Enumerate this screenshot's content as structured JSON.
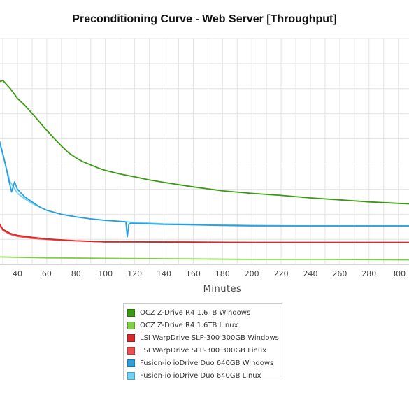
{
  "chart_data": {
    "type": "line",
    "title": "Preconditioning Curve - Web Server [Throughput]",
    "xlabel": "Minutes",
    "ylabel": "",
    "x_ticks": [
      40,
      60,
      80,
      100,
      120,
      140,
      160,
      180,
      200,
      220,
      240,
      260,
      280,
      300
    ],
    "xlim": [
      27,
      308
    ],
    "grid": true,
    "legend_position": "bottom",
    "series": [
      {
        "name": "OCZ Z-Drive R4 1.6TB Windows",
        "color": "#3a9a12",
        "points": [
          [
            27,
            0.855
          ],
          [
            30,
            0.858
          ],
          [
            35,
            0.842
          ],
          [
            40,
            0.822
          ],
          [
            45,
            0.808
          ],
          [
            50,
            0.792
          ],
          [
            55,
            0.775
          ],
          [
            60,
            0.758
          ],
          [
            65,
            0.742
          ],
          [
            70,
            0.727
          ],
          [
            75,
            0.713
          ],
          [
            80,
            0.703
          ],
          [
            85,
            0.695
          ],
          [
            90,
            0.689
          ],
          [
            95,
            0.683
          ],
          [
            100,
            0.678
          ],
          [
            110,
            0.671
          ],
          [
            120,
            0.665
          ],
          [
            130,
            0.659
          ],
          [
            140,
            0.654
          ],
          [
            160,
            0.645
          ],
          [
            180,
            0.637
          ],
          [
            200,
            0.632
          ],
          [
            220,
            0.628
          ],
          [
            240,
            0.623
          ],
          [
            260,
            0.619
          ],
          [
            280,
            0.615
          ],
          [
            300,
            0.612
          ],
          [
            308,
            0.611
          ]
        ]
      },
      {
        "name": "OCZ Z-Drive R4 1.6TB Linux",
        "color": "#7ed242",
        "points": [
          [
            27,
            0.505
          ],
          [
            60,
            0.503
          ],
          [
            100,
            0.502
          ],
          [
            150,
            0.501
          ],
          [
            200,
            0.5
          ],
          [
            250,
            0.5
          ],
          [
            308,
            0.499
          ]
        ]
      },
      {
        "name": "LSI WarpDrive SLP-300 300GB Windows",
        "color": "#d42c2c",
        "points": [
          [
            27,
            0.575
          ],
          [
            30,
            0.56
          ],
          [
            35,
            0.552
          ],
          [
            40,
            0.548
          ],
          [
            50,
            0.544
          ],
          [
            60,
            0.541
          ],
          [
            70,
            0.539
          ],
          [
            80,
            0.537
          ],
          [
            90,
            0.536
          ],
          [
            100,
            0.535
          ],
          [
            120,
            0.535
          ],
          [
            160,
            0.534
          ],
          [
            200,
            0.534
          ],
          [
            250,
            0.534
          ],
          [
            308,
            0.534
          ]
        ]
      },
      {
        "name": "LSI WarpDrive SLP-300 300GB Linux",
        "color": "#ee5050",
        "points": [
          [
            27,
            0.572
          ],
          [
            30,
            0.558
          ],
          [
            35,
            0.55
          ],
          [
            40,
            0.546
          ],
          [
            50,
            0.542
          ],
          [
            60,
            0.54
          ],
          [
            70,
            0.538
          ],
          [
            80,
            0.537
          ],
          [
            90,
            0.536
          ],
          [
            100,
            0.535
          ],
          [
            150,
            0.535
          ],
          [
            200,
            0.534
          ],
          [
            250,
            0.534
          ],
          [
            308,
            0.534
          ]
        ]
      },
      {
        "name": "Fusion-io ioDrive Duo 640GB Windows",
        "color": "#2a9fdc",
        "points": [
          [
            27,
            0.745
          ],
          [
            31,
            0.7
          ],
          [
            34,
            0.66
          ],
          [
            36,
            0.635
          ],
          [
            38,
            0.655
          ],
          [
            40,
            0.64
          ],
          [
            45,
            0.625
          ],
          [
            50,
            0.615
          ],
          [
            55,
            0.605
          ],
          [
            60,
            0.598
          ],
          [
            70,
            0.59
          ],
          [
            80,
            0.585
          ],
          [
            90,
            0.581
          ],
          [
            100,
            0.578
          ],
          [
            110,
            0.576
          ],
          [
            114,
            0.575
          ],
          [
            115,
            0.545
          ],
          [
            116,
            0.57
          ],
          [
            117,
            0.572
          ],
          [
            120,
            0.572
          ],
          [
            140,
            0.57
          ],
          [
            160,
            0.569
          ],
          [
            180,
            0.568
          ],
          [
            200,
            0.567
          ],
          [
            240,
            0.567
          ],
          [
            280,
            0.567
          ],
          [
            308,
            0.567
          ]
        ]
      },
      {
        "name": "Fusion-io ioDrive Duo 640GB Linux",
        "color": "#6fd3f7",
        "points": [
          [
            27,
            0.742
          ],
          [
            31,
            0.698
          ],
          [
            35,
            0.655
          ],
          [
            40,
            0.632
          ],
          [
            45,
            0.621
          ],
          [
            50,
            0.612
          ],
          [
            60,
            0.598
          ],
          [
            70,
            0.59
          ],
          [
            80,
            0.585
          ],
          [
            90,
            0.581
          ],
          [
            100,
            0.578
          ],
          [
            120,
            0.574
          ],
          [
            140,
            0.571
          ],
          [
            160,
            0.57
          ],
          [
            200,
            0.568
          ],
          [
            240,
            0.567
          ],
          [
            280,
            0.567
          ],
          [
            308,
            0.567
          ]
        ]
      }
    ]
  }
}
